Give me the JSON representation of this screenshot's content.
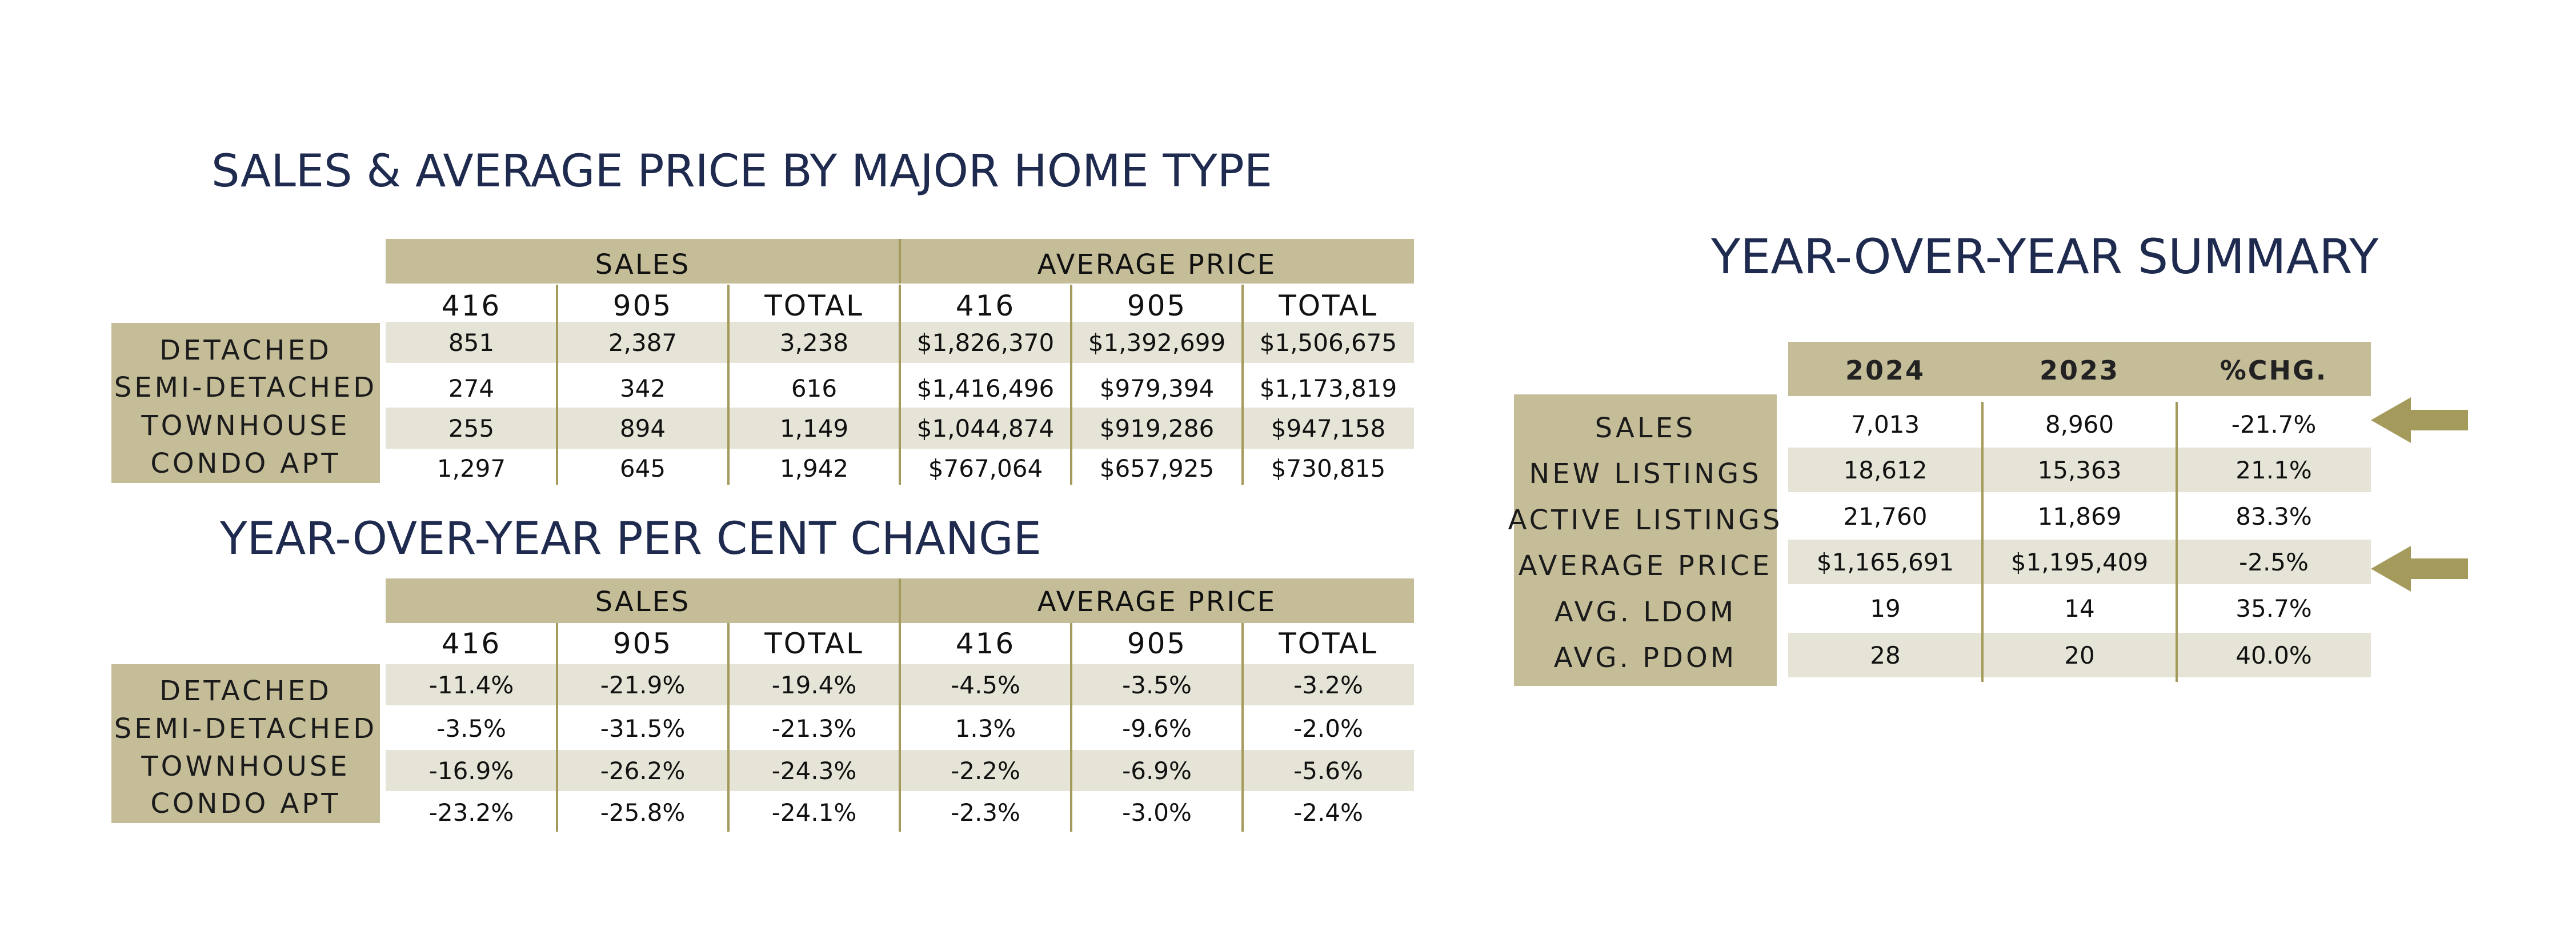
{
  "titles": {
    "main": "SALES & AVERAGE PRICE BY MAJOR HOME TYPE",
    "yoy": "YEAR-OVER-YEAR PER CENT CHANGE",
    "summary": "YEAR-OVER-YEAR SUMMARY"
  },
  "groups": {
    "sales": "SALES",
    "avg_price": "AVERAGE PRICE"
  },
  "columns": [
    "416",
    "905",
    "TOTAL",
    "416",
    "905",
    "TOTAL"
  ],
  "row_labels": [
    "DETACHED",
    "SEMI-DETACHED",
    "TOWNHOUSE",
    "CONDO APT"
  ],
  "table1": {
    "rows": [
      [
        "851",
        "2,387",
        "3,238",
        "$1,826,370",
        "$1,392,699",
        "$1,506,675"
      ],
      [
        "274",
        "342",
        "616",
        "$1,416,496",
        "$979,394",
        "$1,173,819"
      ],
      [
        "255",
        "894",
        "1,149",
        "$1,044,874",
        "$919,286",
        "$947,158"
      ],
      [
        "1,297",
        "645",
        "1,942",
        "$767,064",
        "$657,925",
        "$730,815"
      ]
    ]
  },
  "table2": {
    "rows": [
      [
        "-11.4%",
        "-21.9%",
        "-19.4%",
        "-4.5%",
        "-3.5%",
        "-3.2%"
      ],
      [
        "-3.5%",
        "-31.5%",
        "-21.3%",
        "1.3%",
        "-9.6%",
        "-2.0%"
      ],
      [
        "-16.9%",
        "-26.2%",
        "-24.3%",
        "-2.2%",
        "-6.9%",
        "-5.6%"
      ],
      [
        "-23.2%",
        "-25.8%",
        "-24.1%",
        "-2.3%",
        "-3.0%",
        "-2.4%"
      ]
    ]
  },
  "summary": {
    "headers": [
      "2024",
      "2023",
      "%CHG."
    ],
    "row_labels": [
      "SALES",
      "NEW LISTINGS",
      "ACTIVE LISTINGS",
      "AVERAGE PRICE",
      "AVG. LDOM",
      "AVG. PDOM"
    ],
    "rows": [
      [
        "7,013",
        "8,960",
        "-21.7%"
      ],
      [
        "18,612",
        "15,363",
        "21.1%"
      ],
      [
        "21,760",
        "11,869",
        "83.3%"
      ],
      [
        "$1,165,691",
        "$1,195,409",
        "-2.5%"
      ],
      [
        "19",
        "14",
        "35.7%"
      ],
      [
        "28",
        "20",
        "40.0%"
      ]
    ],
    "highlighted_rows": [
      "SALES",
      "AVERAGE PRICE"
    ]
  },
  "colors": {
    "title": "#1f2a4f",
    "band": "#c4bd98",
    "row_shade": "#e6e4d6",
    "divider": "#a39a5b",
    "arrow": "#a39a5b"
  },
  "icons": [
    "left-arrow-icon"
  ]
}
